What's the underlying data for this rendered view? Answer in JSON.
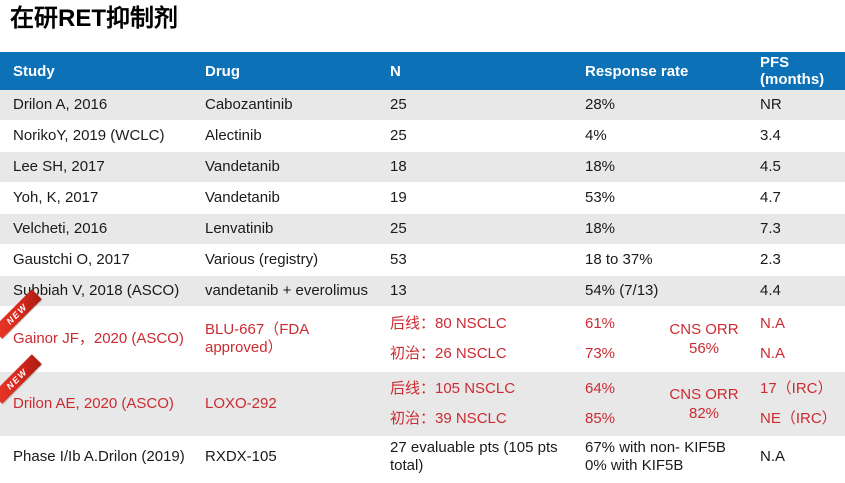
{
  "title": "在研RET抑制剂",
  "colors": {
    "header_bg": "#0d71b8",
    "header_text": "#ffffff",
    "row_bg": "#ffffff",
    "row_alt_bg": "#e8e8e8",
    "body_text": "#1a1a1a",
    "highlight_red": "#cb2b31",
    "ribbon_red": "#d6281c"
  },
  "table": {
    "new_badge_label": "NEW",
    "columns": [
      {
        "key": "study",
        "label": "Study"
      },
      {
        "key": "drug",
        "label": "Drug"
      },
      {
        "key": "n",
        "label": "N"
      },
      {
        "key": "response",
        "label": "Response rate"
      },
      {
        "key": "pfs",
        "label": "PFS (months)"
      }
    ],
    "rows": [
      {
        "study": "Drilon A, 2016",
        "drug": "Cabozantinib",
        "n": "25",
        "response": "28%",
        "pfs": "NR"
      },
      {
        "study": "NorikoY, 2019 (WCLC)",
        "drug": "Alectinib",
        "n": "25",
        "response": "4%",
        "pfs": "3.4"
      },
      {
        "study": "Lee SH, 2017",
        "drug": "Vandetanib",
        "n": "18",
        "response": "18%",
        "pfs": "4.5"
      },
      {
        "study": "Yoh, K, 2017",
        "drug": "Vandetanib",
        "n": "19",
        "response": "53%",
        "pfs": "4.7"
      },
      {
        "study": "Velcheti, 2016",
        "drug": "Lenvatinib",
        "n": "25",
        "response": "18%",
        "pfs": "7.3"
      },
      {
        "study": "Gaustchi O, 2017",
        "drug": "Various (registry)",
        "n": "53",
        "response": "18 to 37%",
        "pfs": "2.3"
      },
      {
        "study": "Subbiah V, 2018 (ASCO)",
        "drug": "vandetanib + everolimus",
        "n": "13",
        "response": "54% (7/13)",
        "pfs": "4.4"
      },
      {
        "study": "Gainor JF，2020 (ASCO)",
        "drug": "BLU-667（FDA approved）",
        "n": [
          "后线：80 NSCLC",
          "初治：26 NSCLC"
        ],
        "response": [
          "61%",
          "73%"
        ],
        "cns_note": "CNS ORR 56%",
        "pfs": [
          "N.A",
          "N.A"
        ],
        "highlight": true,
        "new_badge": true
      },
      {
        "study": "Drilon AE, 2020 (ASCO)",
        "drug": "LOXO-292",
        "n": [
          "后线：105 NSCLC",
          "初治：39 NSCLC"
        ],
        "response": [
          "64%",
          "85%"
        ],
        "cns_note": "CNS ORR 82%",
        "pfs": [
          "17（IRC）",
          "NE（IRC）"
        ],
        "highlight": true,
        "new_badge": true
      },
      {
        "study": "Phase I/Ib A.Drilon (2019)",
        "drug": "RXDX-105",
        "n": "27 evaluable pts (105 pts total)",
        "response": [
          "67% with non- KIF5B",
          "0% with KIF5B"
        ],
        "pfs": "N.A"
      }
    ]
  }
}
